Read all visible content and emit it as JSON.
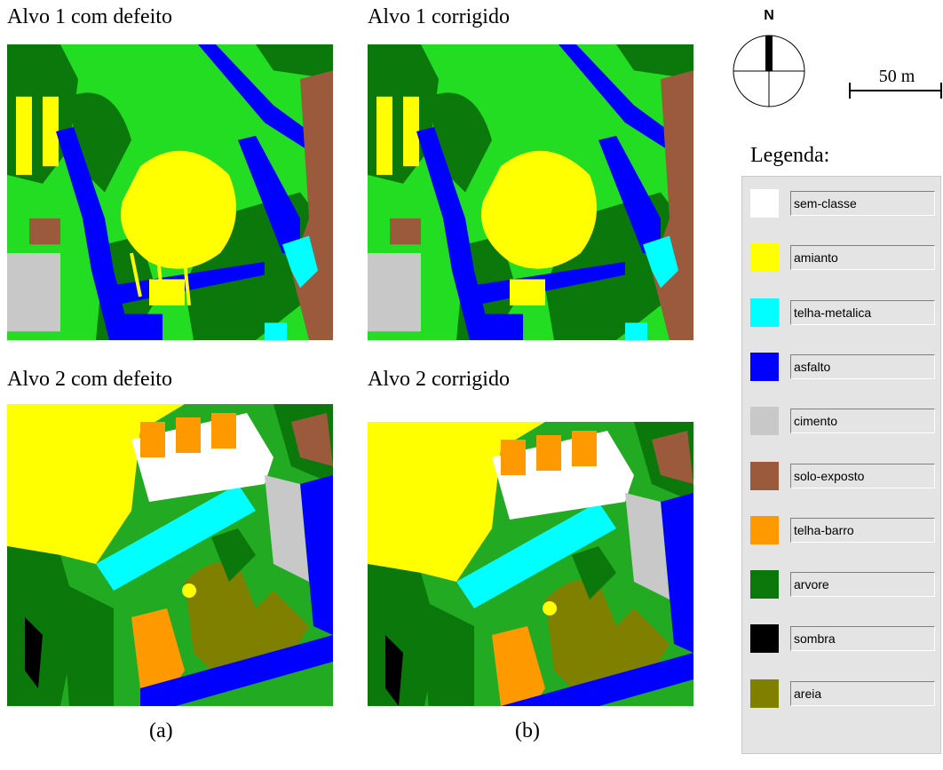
{
  "captions": [
    "Alvo 1 com defeito",
    "Alvo 1 corrigido",
    "Alvo 2 com defeito",
    "Alvo 2 corrigido"
  ],
  "north": "N",
  "scale": "50 m",
  "legend": {
    "title": "Legenda:",
    "items": [
      {
        "label": "sem-classe",
        "color": "#ffffff"
      },
      {
        "label": "amianto",
        "color": "#ffff00"
      },
      {
        "label": "telha-metalica",
        "color": "#00ffff"
      },
      {
        "label": "asfalto",
        "color": "#0000ff"
      },
      {
        "label": "cimento",
        "color": "#c8c8c8"
      },
      {
        "label": "solo-exposto",
        "color": "#9c5a3c"
      },
      {
        "label": "telha-barro",
        "color": "#ff9900"
      },
      {
        "label": "arvore",
        "color": "#0a780a"
      },
      {
        "label": "sombra",
        "color": "#000000"
      },
      {
        "label": "areia",
        "color": "#808000"
      }
    ]
  },
  "panels": [
    "(a)",
    "(b)"
  ]
}
